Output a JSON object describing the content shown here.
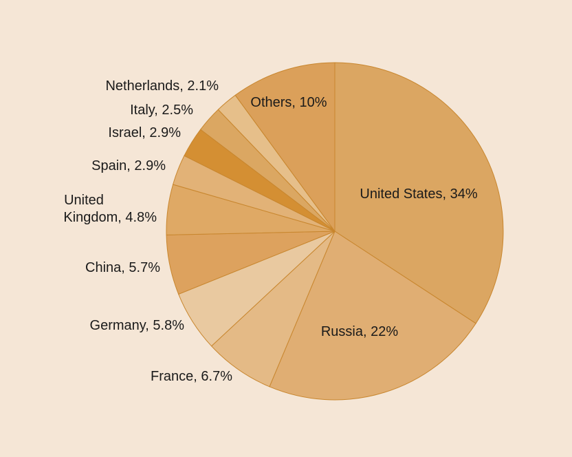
{
  "background_color": "#f5e6d6",
  "chart_data": {
    "type": "pie",
    "start": "top",
    "direction": "clockwise",
    "slices": [
      {
        "label": "United States, 34%",
        "value": 34,
        "color": "#dba662"
      },
      {
        "label": "Russia, 22%",
        "value": 22,
        "color": "#e0ae73"
      },
      {
        "label": "France, 6.7%",
        "value": 6.7,
        "color": "#e4ba86"
      },
      {
        "label": "Germany, 5.8%",
        "value": 5.8,
        "color": "#e9c9a0"
      },
      {
        "label": "China, 5.7%",
        "value": 5.7,
        "color": "#dda25e"
      },
      {
        "label": "United Kingdom, 4.8%",
        "value": 4.8,
        "color": "#dfa965",
        "lines": [
          "United",
          "Kingdom, 4.8%"
        ]
      },
      {
        "label": "Spain, 2.9%",
        "value": 2.9,
        "color": "#e2b277"
      },
      {
        "label": "Israel, 2.9%",
        "value": 2.9,
        "color": "#d48f33"
      },
      {
        "label": "Italy, 2.5%",
        "value": 2.5,
        "color": "#dba762"
      },
      {
        "label": "Netherlands, 2.1%",
        "value": 2.1,
        "color": "#e6bf8a"
      },
      {
        "label": "Others, 10%",
        "value": 10,
        "color": "#dba05a"
      }
    ]
  }
}
